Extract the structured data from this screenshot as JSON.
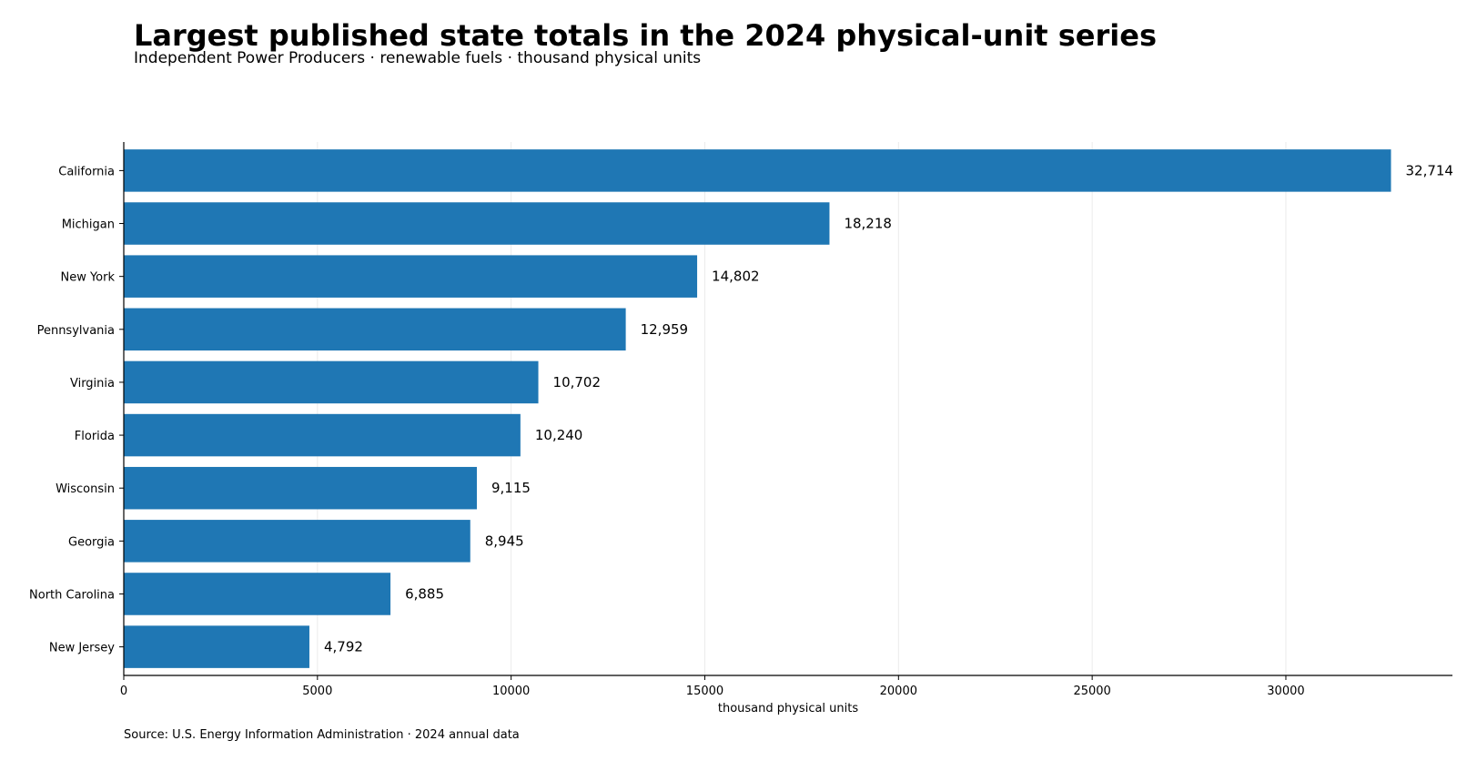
{
  "header": {
    "title": "Largest published state totals in the 2024 physical-unit series",
    "subtitle": "Independent Power Producers · renewable fuels · thousand physical units"
  },
  "footer": {
    "source": "Source: U.S. Energy Information Administration · 2024 annual data"
  },
  "colors": {
    "bar": "#1f77b4",
    "grid": "#ebebeb",
    "axis": "#000000"
  },
  "chart_data": {
    "type": "bar",
    "orientation": "horizontal",
    "title": "Largest published state totals in the 2024 physical-unit series",
    "subtitle": "Independent Power Producers · renewable fuels · thousand physical units",
    "xlabel": "thousand physical units",
    "ylabel": "",
    "xlim": [
      0,
      34300
    ],
    "xticks": [
      0,
      5000,
      10000,
      15000,
      20000,
      25000,
      30000
    ],
    "grid": "vertical",
    "categories": [
      "California",
      "Michigan",
      "New York",
      "Pennsylvania",
      "Virginia",
      "Florida",
      "Wisconsin",
      "Georgia",
      "North Carolina",
      "New Jersey"
    ],
    "values": [
      32714,
      18218,
      14802,
      12959,
      10702,
      10240,
      9115,
      8945,
      6885,
      4792
    ],
    "value_labels": [
      "32,714",
      "18,218",
      "14,802",
      "12,959",
      "10,702",
      "10,240",
      "9,115",
      "8,945",
      "6,885",
      "4,792"
    ]
  }
}
